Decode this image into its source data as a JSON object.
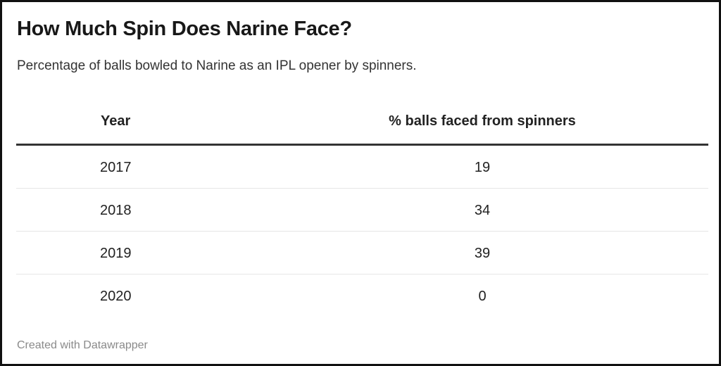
{
  "title": "How Much Spin Does Narine Face?",
  "subtitle": "Percentage of balls bowled to Narine as an IPL opener by spinners.",
  "footer": "Created with Datawrapper",
  "colors": {
    "frame_border": "#111111",
    "header_rule": "#333333",
    "row_rule": "#e6e6e6",
    "text": "#222222",
    "footer_text": "#8a8a8a"
  },
  "chart_data": {
    "type": "table",
    "title": "How Much Spin Does Narine Face?",
    "subtitle": "Percentage of balls bowled to Narine as an IPL opener by spinners.",
    "columns": [
      "Year",
      "% balls faced from spinners"
    ],
    "rows": [
      [
        "2017",
        "19"
      ],
      [
        "2018",
        "34"
      ],
      [
        "2019",
        "39"
      ],
      [
        "2020",
        "0"
      ]
    ]
  }
}
